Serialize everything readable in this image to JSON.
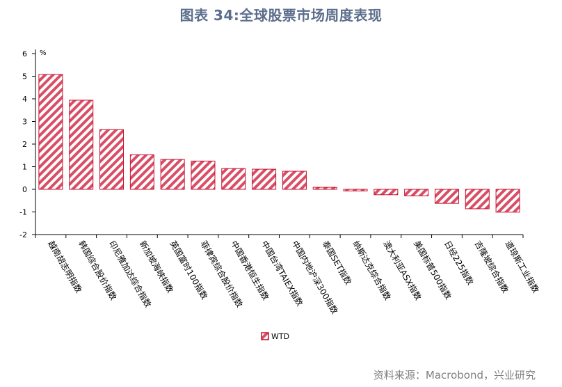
{
  "page": {
    "title": "图表 34:全球股票市场周度表现",
    "source": "资料来源：Macrobond，兴业研究"
  },
  "chart_data": {
    "type": "bar",
    "title": "图表 34:全球股票市场周度表现",
    "ylabel": "%",
    "xlabel": "",
    "ylim": [
      -2,
      6
    ],
    "yticks": [
      -2,
      -1,
      0,
      1,
      2,
      3,
      4,
      5,
      6
    ],
    "categories": [
      "越南胡志明指数",
      "韩国综合股价指数",
      "印尼雅加达综合指数",
      "新加坡海峡指数",
      "英国富时100指数",
      "菲律宾综合股价指数",
      "中国香港恒生指数",
      "中国台湾TAIEX指数",
      "中国内地沪深300指数",
      "泰国SET指数",
      "纳斯达克综合指数",
      "澳大利亚ASX指数",
      "美国标普500指数",
      "日经225指数",
      "吉隆坡综合指数",
      "道琼斯工业指数"
    ],
    "series": [
      {
        "name": "WTD",
        "values": [
          5.08,
          3.94,
          2.64,
          1.53,
          1.32,
          1.25,
          0.92,
          0.89,
          0.8,
          0.09,
          -0.07,
          -0.24,
          -0.29,
          -0.62,
          -0.86,
          -1.01
        ]
      }
    ],
    "legend": "bottom-center",
    "colors": {
      "bar_stroke": "#c8102e",
      "bar_hatch": "#d94e66",
      "axis": "#000000"
    }
  }
}
